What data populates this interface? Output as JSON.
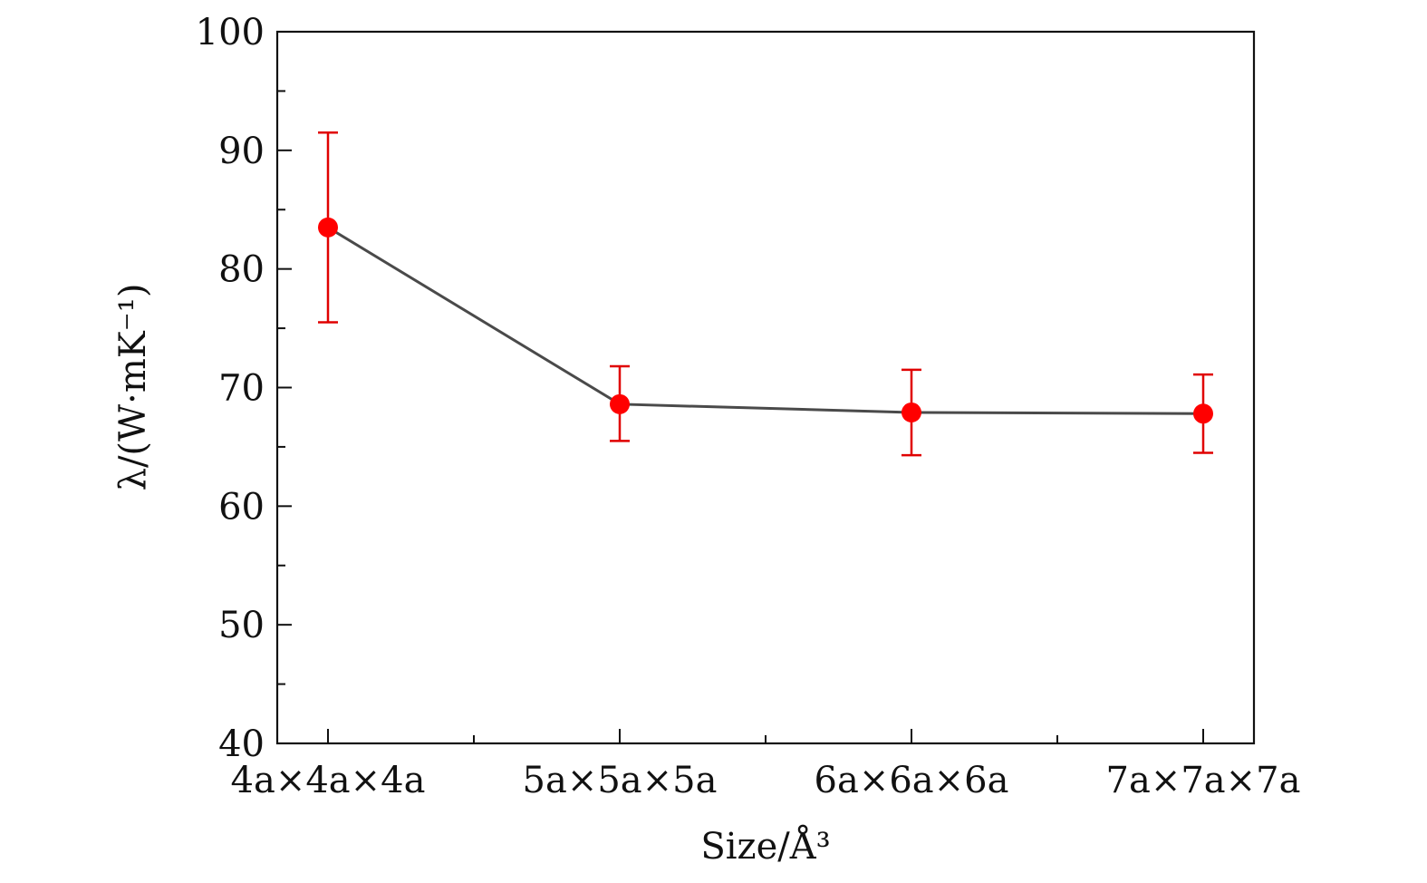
{
  "chart_data": {
    "type": "line",
    "title": "",
    "categories": [
      "4a×4a×4a",
      "5a×5a×5a",
      "6a×6a×6a",
      "7a×7a×7a"
    ],
    "series": [
      {
        "values": [
          83.5,
          68.6,
          67.9,
          67.8
        ],
        "error_low": [
          75.5,
          65.5,
          64.3,
          64.5
        ],
        "error_high": [
          91.5,
          71.8,
          71.5,
          71.1
        ]
      }
    ],
    "xlabel": "Size/Å³",
    "ylabel": "λ/(W·mK⁻¹)",
    "ylim": [
      40,
      100
    ],
    "y_ticks": [
      40,
      50,
      60,
      70,
      80,
      90,
      100
    ],
    "grid": false,
    "legend": "none"
  },
  "colors": {
    "line": "#4a4a4a",
    "marker": "#ff0000",
    "errorbar": "#e00000",
    "axis": "#111111"
  }
}
